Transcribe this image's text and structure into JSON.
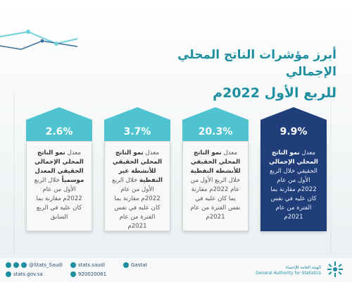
{
  "title": {
    "line1": "أبرز مؤشرات الناتج المحلي الإجمالي",
    "line2": "للربع الأول 2022م"
  },
  "cards": [
    {
      "value": "9.9%",
      "text_pre": "معدل ",
      "text_bold": "نمو الناتج المحلي الإجمالي",
      "text_post": " الحقيقي خلال الربع الأول من عام 2022م مقارنة بما كان عليه في نفس الفترة من عام 2021م"
    },
    {
      "value": "20.3%",
      "text_pre": "معدل ",
      "text_bold": "نمو الناتج المحلي الحقيقي للأنشطة النفطية",
      "text_post": " خلال الربع الأول من عام 2022م مقارنة بما كان عليه في نفس الفترة من عام 2021م"
    },
    {
      "value": "3.7%",
      "text_pre": "معدل ",
      "text_bold": "نمو الناتج المحلي الحقيقي للأنشطة غير النفطية",
      "text_post": " خلال الربع الأول من عام 2022م مقارنة بما كان عليه في نفس الفترة من عام 2021م"
    },
    {
      "value": "2.6%",
      "text_pre": "معدل ",
      "text_bold": "نمو الناتج المحلي الإجمالي الحقيقي المعدل موسمياً",
      "text_post": " خلال الربع الأول من عام 2022م مقارنة بما كان عليه في الربع السابق"
    }
  ],
  "footer": {
    "social1": "@Stats_Saudi",
    "social2": "stats.saudi",
    "social3": "Gastat",
    "website": "stats.gov.sa",
    "phone": "920020081",
    "org_ar": "الهيئة العامة للإحصاء",
    "org_en": "General Authority for Statistics"
  },
  "colors": {
    "teal": "#1f8fa0",
    "navy": "#203f7a",
    "arrow_light": "#4fc3cf"
  }
}
